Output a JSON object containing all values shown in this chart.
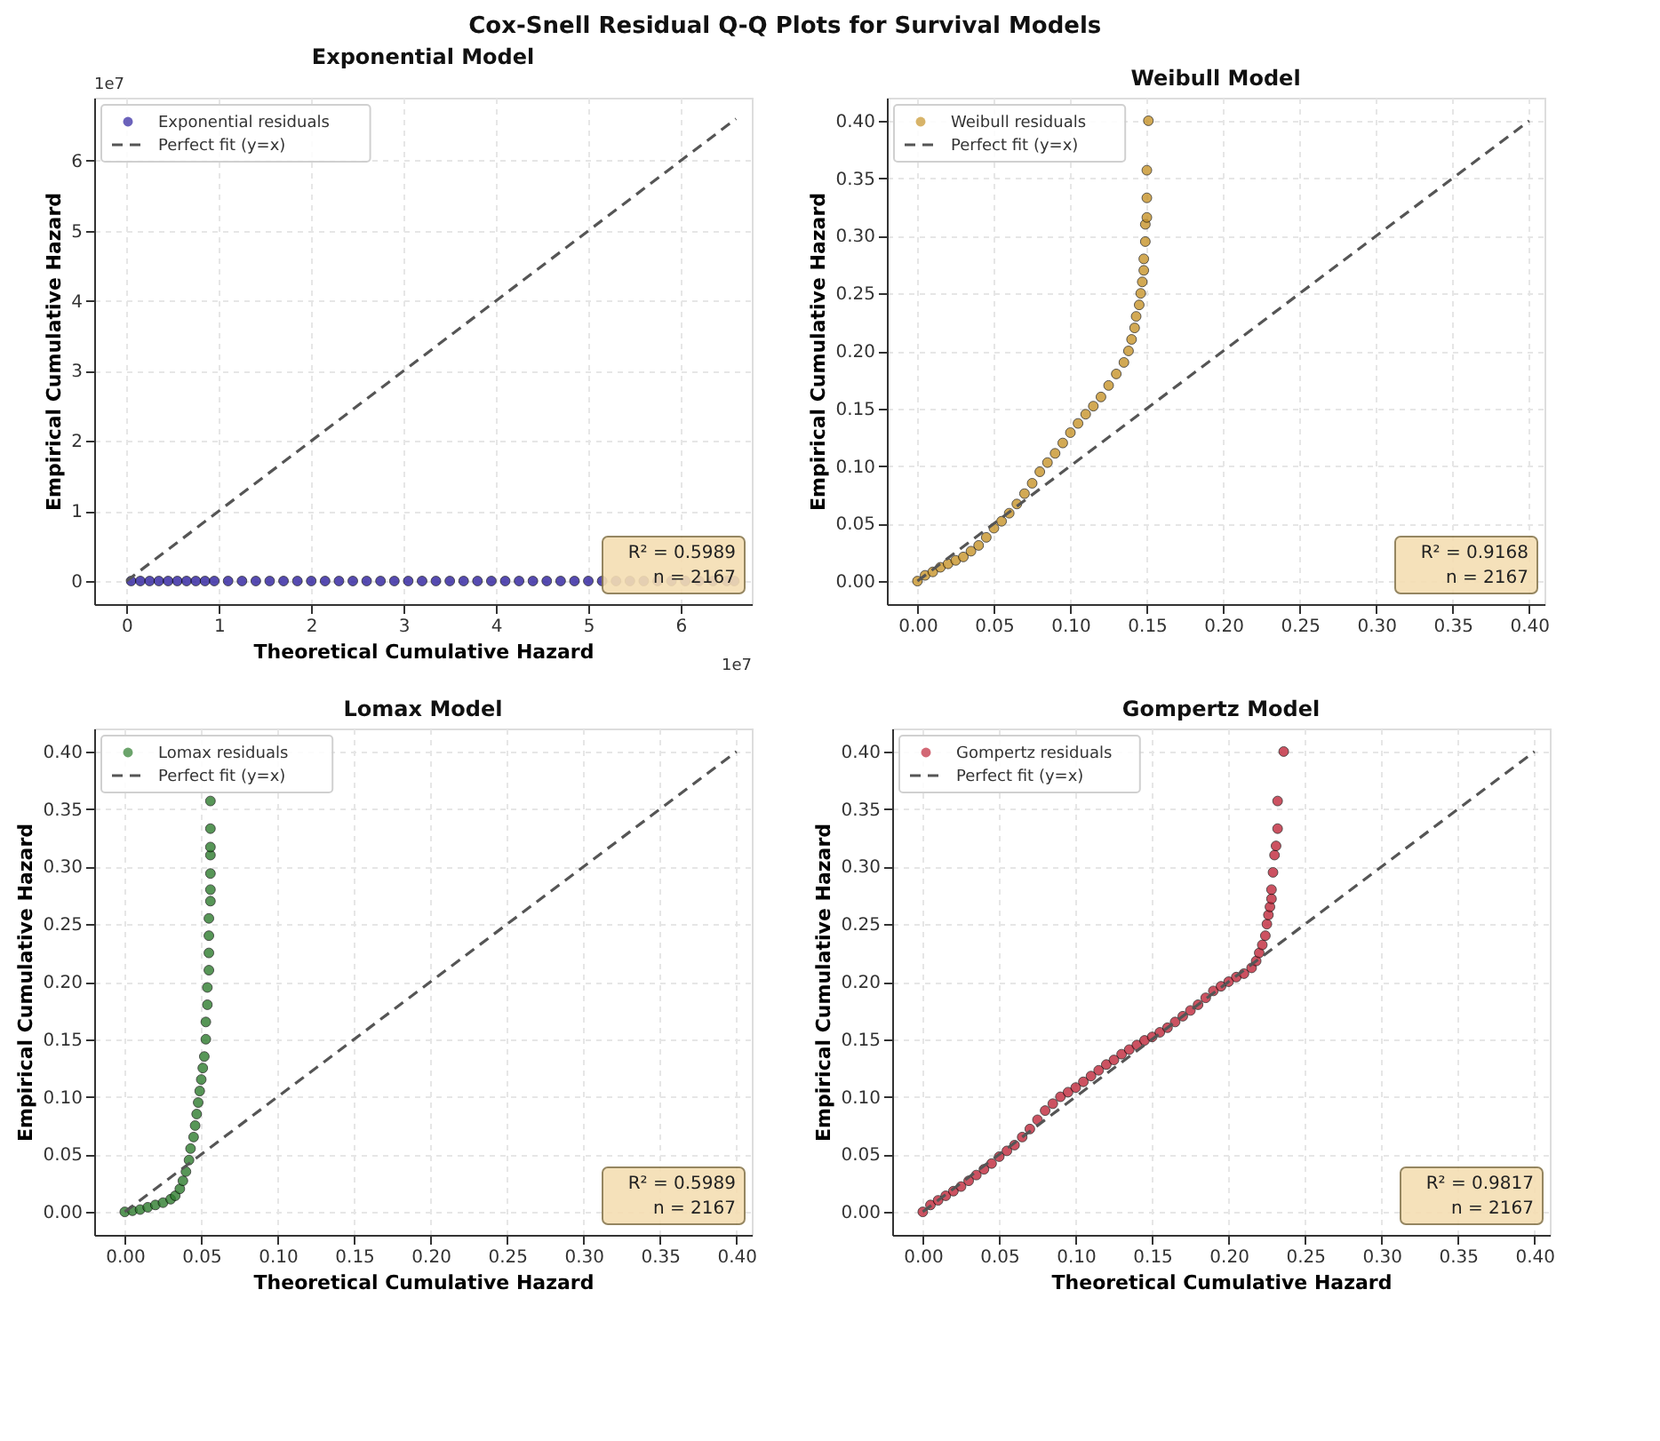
{
  "chart_data": [
    {
      "type": "other",
      "title": "Cox-Snell Residual Q-Q Plots for Survival Models"
    },
    {
      "type": "scatter",
      "title": "Exponential Model",
      "xlabel": "Theoretical Cumulative Hazard",
      "ylabel": "Empirical Cumulative Hazard",
      "xlim": [
        -0.35,
        6.77
      ],
      "ylim": [
        -0.33,
        6.9
      ],
      "xticks": [
        0,
        1,
        2,
        3,
        4,
        5,
        6
      ],
      "yticks": [
        0,
        1,
        2,
        3,
        4,
        5,
        6
      ],
      "grid": true,
      "legend": "top left",
      "annotations": [
        "1e7",
        "1e7",
        "R² = 0.5989",
        "n = 2167"
      ],
      "series": [
        {
          "name": "Exponential residuals",
          "type": "scatter",
          "marker": "circle",
          "color": "#2c1f9e",
          "x": [
            0.05,
            0.15,
            0.25,
            0.35,
            0.45,
            0.55,
            0.65,
            0.75,
            0.85,
            0.95,
            1.1,
            1.25,
            1.4,
            1.55,
            1.7,
            1.85,
            2.0,
            2.15,
            2.3,
            2.45,
            2.6,
            2.75,
            2.9,
            3.05,
            3.2,
            3.35,
            3.5,
            3.65,
            3.8,
            3.95,
            4.1,
            4.25,
            4.4,
            4.55,
            4.7,
            4.85,
            5.0,
            5.15,
            5.3,
            5.45,
            5.6,
            5.75,
            5.9,
            6.05,
            6.2,
            6.35,
            6.5,
            6.58
          ],
          "values": [
            0,
            0,
            0,
            0,
            0,
            0,
            0,
            0,
            0,
            0,
            0,
            0,
            0,
            0,
            0,
            0,
            0,
            0,
            0,
            0,
            0,
            0,
            0,
            0,
            0,
            0,
            0,
            0,
            0,
            0,
            0,
            0,
            0,
            0,
            0,
            0,
            0,
            0,
            0,
            0,
            0,
            0,
            0,
            0,
            0,
            0,
            0,
            0
          ]
        },
        {
          "name": "Perfect fit (y=x)",
          "type": "line",
          "line_style": "dashed",
          "color": "#555555",
          "x": [
            0,
            6.6
          ],
          "values": [
            0,
            6.6
          ]
        }
      ]
    },
    {
      "type": "scatter",
      "title": "Weibull Model",
      "ylabel": "Empirical Cumulative Hazard",
      "xlim": [
        -0.02,
        0.41
      ],
      "ylim": [
        -0.02,
        0.42
      ],
      "xticks": [
        {
          "value": 0,
          "label": "0.00"
        },
        0.05,
        {
          "value": 0.1,
          "label": "0.10"
        },
        0.15,
        {
          "value": 0.2,
          "label": "0.20"
        },
        0.25,
        {
          "value": 0.3,
          "label": "0.30"
        },
        0.35,
        {
          "value": 0.4,
          "label": "0.40"
        }
      ],
      "yticks": [
        {
          "value": 0,
          "label": "0.00"
        },
        0.05,
        {
          "value": 0.1,
          "label": "0.10"
        },
        0.15,
        {
          "value": 0.2,
          "label": "0.20"
        },
        0.25,
        {
          "value": 0.3,
          "label": "0.30"
        },
        0.35,
        {
          "value": 0.4,
          "label": "0.40"
        }
      ],
      "grid": true,
      "legend": "top left",
      "annotations": [
        "R² = 0.9168",
        "n = 2167"
      ],
      "series": [
        {
          "name": "Weibull residuals",
          "type": "scatter",
          "marker": "circle",
          "color": "#c8942a",
          "x": [
            0,
            0.005,
            0.01,
            0.015,
            0.02,
            0.025,
            0.03,
            0.035,
            0.04,
            0.045,
            0.05,
            0.055,
            0.06,
            0.065,
            0.07,
            0.075,
            0.08,
            0.085,
            0.09,
            0.095,
            0.1,
            0.105,
            0.11,
            0.115,
            0.12,
            0.125,
            0.13,
            0.135,
            0.138,
            0.14,
            0.142,
            0.143,
            0.145,
            0.146,
            0.147,
            0.148,
            0.148,
            0.149,
            0.149,
            0.15,
            0.15,
            0.15,
            0.151
          ],
          "values": [
            0,
            0.005,
            0.008,
            0.012,
            0.015,
            0.018,
            0.021,
            0.026,
            0.031,
            0.038,
            0.046,
            0.052,
            0.059,
            0.067,
            0.076,
            0.085,
            0.095,
            0.103,
            0.111,
            0.12,
            0.129,
            0.137,
            0.145,
            0.152,
            0.16,
            0.17,
            0.18,
            0.19,
            0.2,
            0.21,
            0.22,
            0.23,
            0.24,
            0.25,
            0.26,
            0.27,
            0.28,
            0.295,
            0.31,
            0.316,
            0.333,
            0.357,
            0.4
          ]
        },
        {
          "name": "Perfect fit (y=x)",
          "type": "line",
          "line_style": "dashed",
          "color": "#555555",
          "x": [
            0,
            0.4
          ],
          "values": [
            0,
            0.4
          ]
        }
      ]
    },
    {
      "type": "scatter",
      "title": "Lomax Model",
      "xlabel": "Theoretical Cumulative Hazard",
      "ylabel": "Empirical Cumulative Hazard",
      "xlim": [
        -0.02,
        0.41
      ],
      "ylim": [
        -0.02,
        0.42
      ],
      "xticks": [
        {
          "value": 0,
          "label": "0.00"
        },
        0.05,
        {
          "value": 0.1,
          "label": "0.10"
        },
        0.15,
        {
          "value": 0.2,
          "label": "0.20"
        },
        0.25,
        {
          "value": 0.3,
          "label": "0.30"
        },
        0.35,
        {
          "value": 0.4,
          "label": "0.40"
        }
      ],
      "yticks": [
        {
          "value": 0,
          "label": "0.00"
        },
        0.05,
        {
          "value": 0.1,
          "label": "0.10"
        },
        0.15,
        {
          "value": 0.2,
          "label": "0.20"
        },
        0.25,
        {
          "value": 0.3,
          "label": "0.30"
        },
        0.35,
        {
          "value": 0.4,
          "label": "0.40"
        }
      ],
      "grid": true,
      "legend": "top left",
      "annotations": [
        "R² = 0.5989",
        "n = 2167"
      ],
      "series": [
        {
          "name": "Lomax residuals",
          "type": "scatter",
          "marker": "circle",
          "color": "#2e7d2e",
          "x": [
            0,
            0.005,
            0.01,
            0.015,
            0.02,
            0.025,
            0.03,
            0.033,
            0.036,
            0.038,
            0.04,
            0.042,
            0.043,
            0.045,
            0.046,
            0.047,
            0.048,
            0.049,
            0.05,
            0.051,
            0.052,
            0.053,
            0.053,
            0.054,
            0.054,
            0.055,
            0.055,
            0.055,
            0.055,
            0.056,
            0.056,
            0.056,
            0.056,
            0.056,
            0.056,
            0.056
          ],
          "values": [
            0,
            0.001,
            0.002,
            0.004,
            0.006,
            0.008,
            0.011,
            0.014,
            0.02,
            0.027,
            0.035,
            0.045,
            0.055,
            0.065,
            0.075,
            0.085,
            0.095,
            0.105,
            0.115,
            0.125,
            0.135,
            0.15,
            0.165,
            0.18,
            0.195,
            0.21,
            0.225,
            0.24,
            0.255,
            0.27,
            0.28,
            0.294,
            0.31,
            0.317,
            0.333,
            0.357
          ]
        },
        {
          "name": "Perfect fit (y=x)",
          "type": "line",
          "line_style": "dashed",
          "color": "#555555",
          "x": [
            0,
            0.4
          ],
          "values": [
            0,
            0.4
          ]
        }
      ]
    },
    {
      "type": "scatter",
      "title": "Gompertz Model",
      "xlabel": "Theoretical Cumulative Hazard",
      "ylabel": "Empirical Cumulative Hazard",
      "xlim": [
        -0.02,
        0.41
      ],
      "ylim": [
        -0.02,
        0.42
      ],
      "xticks": [
        {
          "value": 0,
          "label": "0.00"
        },
        0.05,
        {
          "value": 0.1,
          "label": "0.10"
        },
        0.15,
        {
          "value": 0.2,
          "label": "0.20"
        },
        0.25,
        {
          "value": 0.3,
          "label": "0.30"
        },
        0.35,
        {
          "value": 0.4,
          "label": "0.40"
        }
      ],
      "yticks": [
        {
          "value": 0,
          "label": "0.00"
        },
        0.05,
        {
          "value": 0.1,
          "label": "0.10"
        },
        0.15,
        {
          "value": 0.2,
          "label": "0.20"
        },
        0.25,
        {
          "value": 0.3,
          "label": "0.30"
        },
        0.35,
        {
          "value": 0.4,
          "label": "0.40"
        }
      ],
      "grid": true,
      "legend": "top left",
      "annotations": [
        "R² = 0.9817",
        "n = 2167"
      ],
      "series": [
        {
          "name": "Gompertz residuals",
          "type": "scatter",
          "marker": "circle",
          "color": "#c0283a",
          "x": [
            0,
            0.005,
            0.01,
            0.015,
            0.02,
            0.025,
            0.03,
            0.035,
            0.04,
            0.045,
            0.05,
            0.055,
            0.06,
            0.065,
            0.07,
            0.075,
            0.08,
            0.085,
            0.09,
            0.095,
            0.1,
            0.105,
            0.11,
            0.115,
            0.12,
            0.125,
            0.13,
            0.135,
            0.14,
            0.145,
            0.15,
            0.155,
            0.16,
            0.165,
            0.17,
            0.175,
            0.18,
            0.185,
            0.19,
            0.195,
            0.2,
            0.205,
            0.21,
            0.215,
            0.218,
            0.22,
            0.222,
            0.224,
            0.225,
            0.226,
            0.227,
            0.228,
            0.228,
            0.229,
            0.23,
            0.231,
            0.232,
            0.232,
            0.236
          ],
          "values": [
            0,
            0.006,
            0.01,
            0.014,
            0.018,
            0.022,
            0.027,
            0.032,
            0.037,
            0.042,
            0.048,
            0.053,
            0.058,
            0.065,
            0.072,
            0.08,
            0.088,
            0.094,
            0.1,
            0.104,
            0.108,
            0.113,
            0.118,
            0.123,
            0.128,
            0.132,
            0.137,
            0.141,
            0.145,
            0.149,
            0.152,
            0.156,
            0.16,
            0.165,
            0.17,
            0.175,
            0.18,
            0.186,
            0.192,
            0.196,
            0.2,
            0.204,
            0.207,
            0.212,
            0.218,
            0.225,
            0.232,
            0.24,
            0.25,
            0.258,
            0.265,
            0.272,
            0.28,
            0.295,
            0.31,
            0.318,
            0.333,
            0.357,
            0.4
          ]
        },
        {
          "name": "Perfect fit (y=x)",
          "type": "line",
          "line_style": "dashed",
          "color": "#555555",
          "x": [
            0,
            0.4
          ],
          "values": [
            0,
            0.4
          ]
        }
      ]
    }
  ]
}
